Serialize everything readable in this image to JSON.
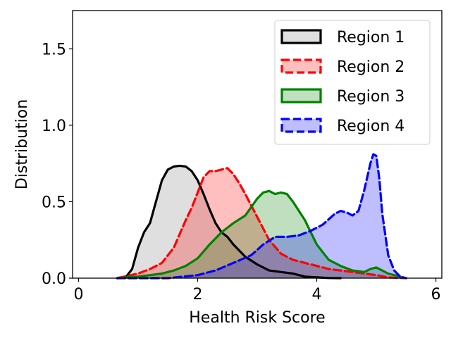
{
  "chart_data": {
    "type": "area",
    "title": "",
    "xlabel": "Health Risk Score",
    "ylabel": "Distribution",
    "xlim": [
      -0.1,
      6.1
    ],
    "ylim": [
      0.0,
      1.75
    ],
    "xticks": [
      0,
      2,
      4,
      6
    ],
    "xtick_labels": [
      "0",
      "2",
      "4",
      "6"
    ],
    "yticks": [
      0.0,
      0.5,
      1.0,
      1.5
    ],
    "ytick_labels": [
      "0.0",
      "0.5",
      "1.0",
      "1.5"
    ],
    "grid": false,
    "legend_position": "top-right",
    "series": [
      {
        "name": "Region 1",
        "color": "#000000",
        "fill": "#808080",
        "line_style": "solid",
        "x": [
          0.65,
          0.8,
          0.9,
          1.0,
          1.1,
          1.2,
          1.3,
          1.4,
          1.5,
          1.6,
          1.7,
          1.8,
          1.9,
          2.0,
          2.1,
          2.2,
          2.3,
          2.4,
          2.5,
          2.6,
          2.8,
          3.0,
          3.2,
          3.4,
          3.6,
          3.8,
          4.0,
          4.2,
          4.4
        ],
        "y": [
          0.0,
          0.01,
          0.06,
          0.2,
          0.3,
          0.36,
          0.5,
          0.64,
          0.71,
          0.73,
          0.735,
          0.73,
          0.7,
          0.64,
          0.55,
          0.45,
          0.36,
          0.3,
          0.27,
          0.22,
          0.14,
          0.09,
          0.05,
          0.04,
          0.03,
          0.01,
          0.005,
          0.001,
          0.0
        ]
      },
      {
        "name": "Region 2",
        "color": "#ff0000",
        "fill": "#ff0000",
        "line_style": "dashed",
        "x": [
          0.65,
          1.0,
          1.2,
          1.4,
          1.6,
          1.8,
          1.9,
          2.0,
          2.1,
          2.2,
          2.3,
          2.4,
          2.5,
          2.6,
          2.7,
          2.8,
          3.0,
          3.2,
          3.4,
          3.6,
          3.8,
          4.0,
          4.2,
          4.4,
          4.6,
          4.8,
          5.0,
          5.2,
          5.5
        ],
        "y": [
          0.0,
          0.03,
          0.06,
          0.1,
          0.2,
          0.38,
          0.46,
          0.56,
          0.66,
          0.7,
          0.7,
          0.71,
          0.72,
          0.68,
          0.62,
          0.55,
          0.4,
          0.25,
          0.16,
          0.12,
          0.1,
          0.08,
          0.06,
          0.05,
          0.04,
          0.03,
          0.02,
          0.005,
          0.0
        ]
      },
      {
        "name": "Region 3",
        "color": "#008000",
        "fill": "#008000",
        "line_style": "solid",
        "x": [
          0.65,
          1.0,
          1.2,
          1.4,
          1.6,
          1.8,
          2.0,
          2.2,
          2.4,
          2.6,
          2.8,
          3.0,
          3.1,
          3.2,
          3.3,
          3.4,
          3.5,
          3.6,
          3.8,
          4.0,
          4.2,
          4.4,
          4.6,
          4.8,
          4.9,
          5.0,
          5.2,
          5.5
        ],
        "y": [
          0.0,
          0.01,
          0.02,
          0.03,
          0.05,
          0.08,
          0.13,
          0.22,
          0.3,
          0.36,
          0.41,
          0.52,
          0.56,
          0.57,
          0.55,
          0.56,
          0.55,
          0.5,
          0.38,
          0.22,
          0.12,
          0.08,
          0.05,
          0.04,
          0.06,
          0.07,
          0.03,
          0.0
        ]
      },
      {
        "name": "Region 4",
        "color": "#0000ff",
        "fill": "#0000ff",
        "line_style": "dashed",
        "x": [
          0.65,
          1.5,
          2.0,
          2.3,
          2.6,
          2.9,
          3.1,
          3.3,
          3.5,
          3.7,
          3.9,
          4.1,
          4.3,
          4.4,
          4.5,
          4.6,
          4.7,
          4.8,
          4.9,
          4.95,
          5.0,
          5.05,
          5.1,
          5.2,
          5.3,
          5.4,
          5.5
        ],
        "y": [
          0.0,
          0.0,
          0.02,
          0.05,
          0.1,
          0.15,
          0.22,
          0.27,
          0.27,
          0.28,
          0.31,
          0.35,
          0.42,
          0.44,
          0.43,
          0.41,
          0.44,
          0.58,
          0.75,
          0.81,
          0.8,
          0.65,
          0.42,
          0.15,
          0.05,
          0.01,
          0.0
        ]
      }
    ]
  }
}
